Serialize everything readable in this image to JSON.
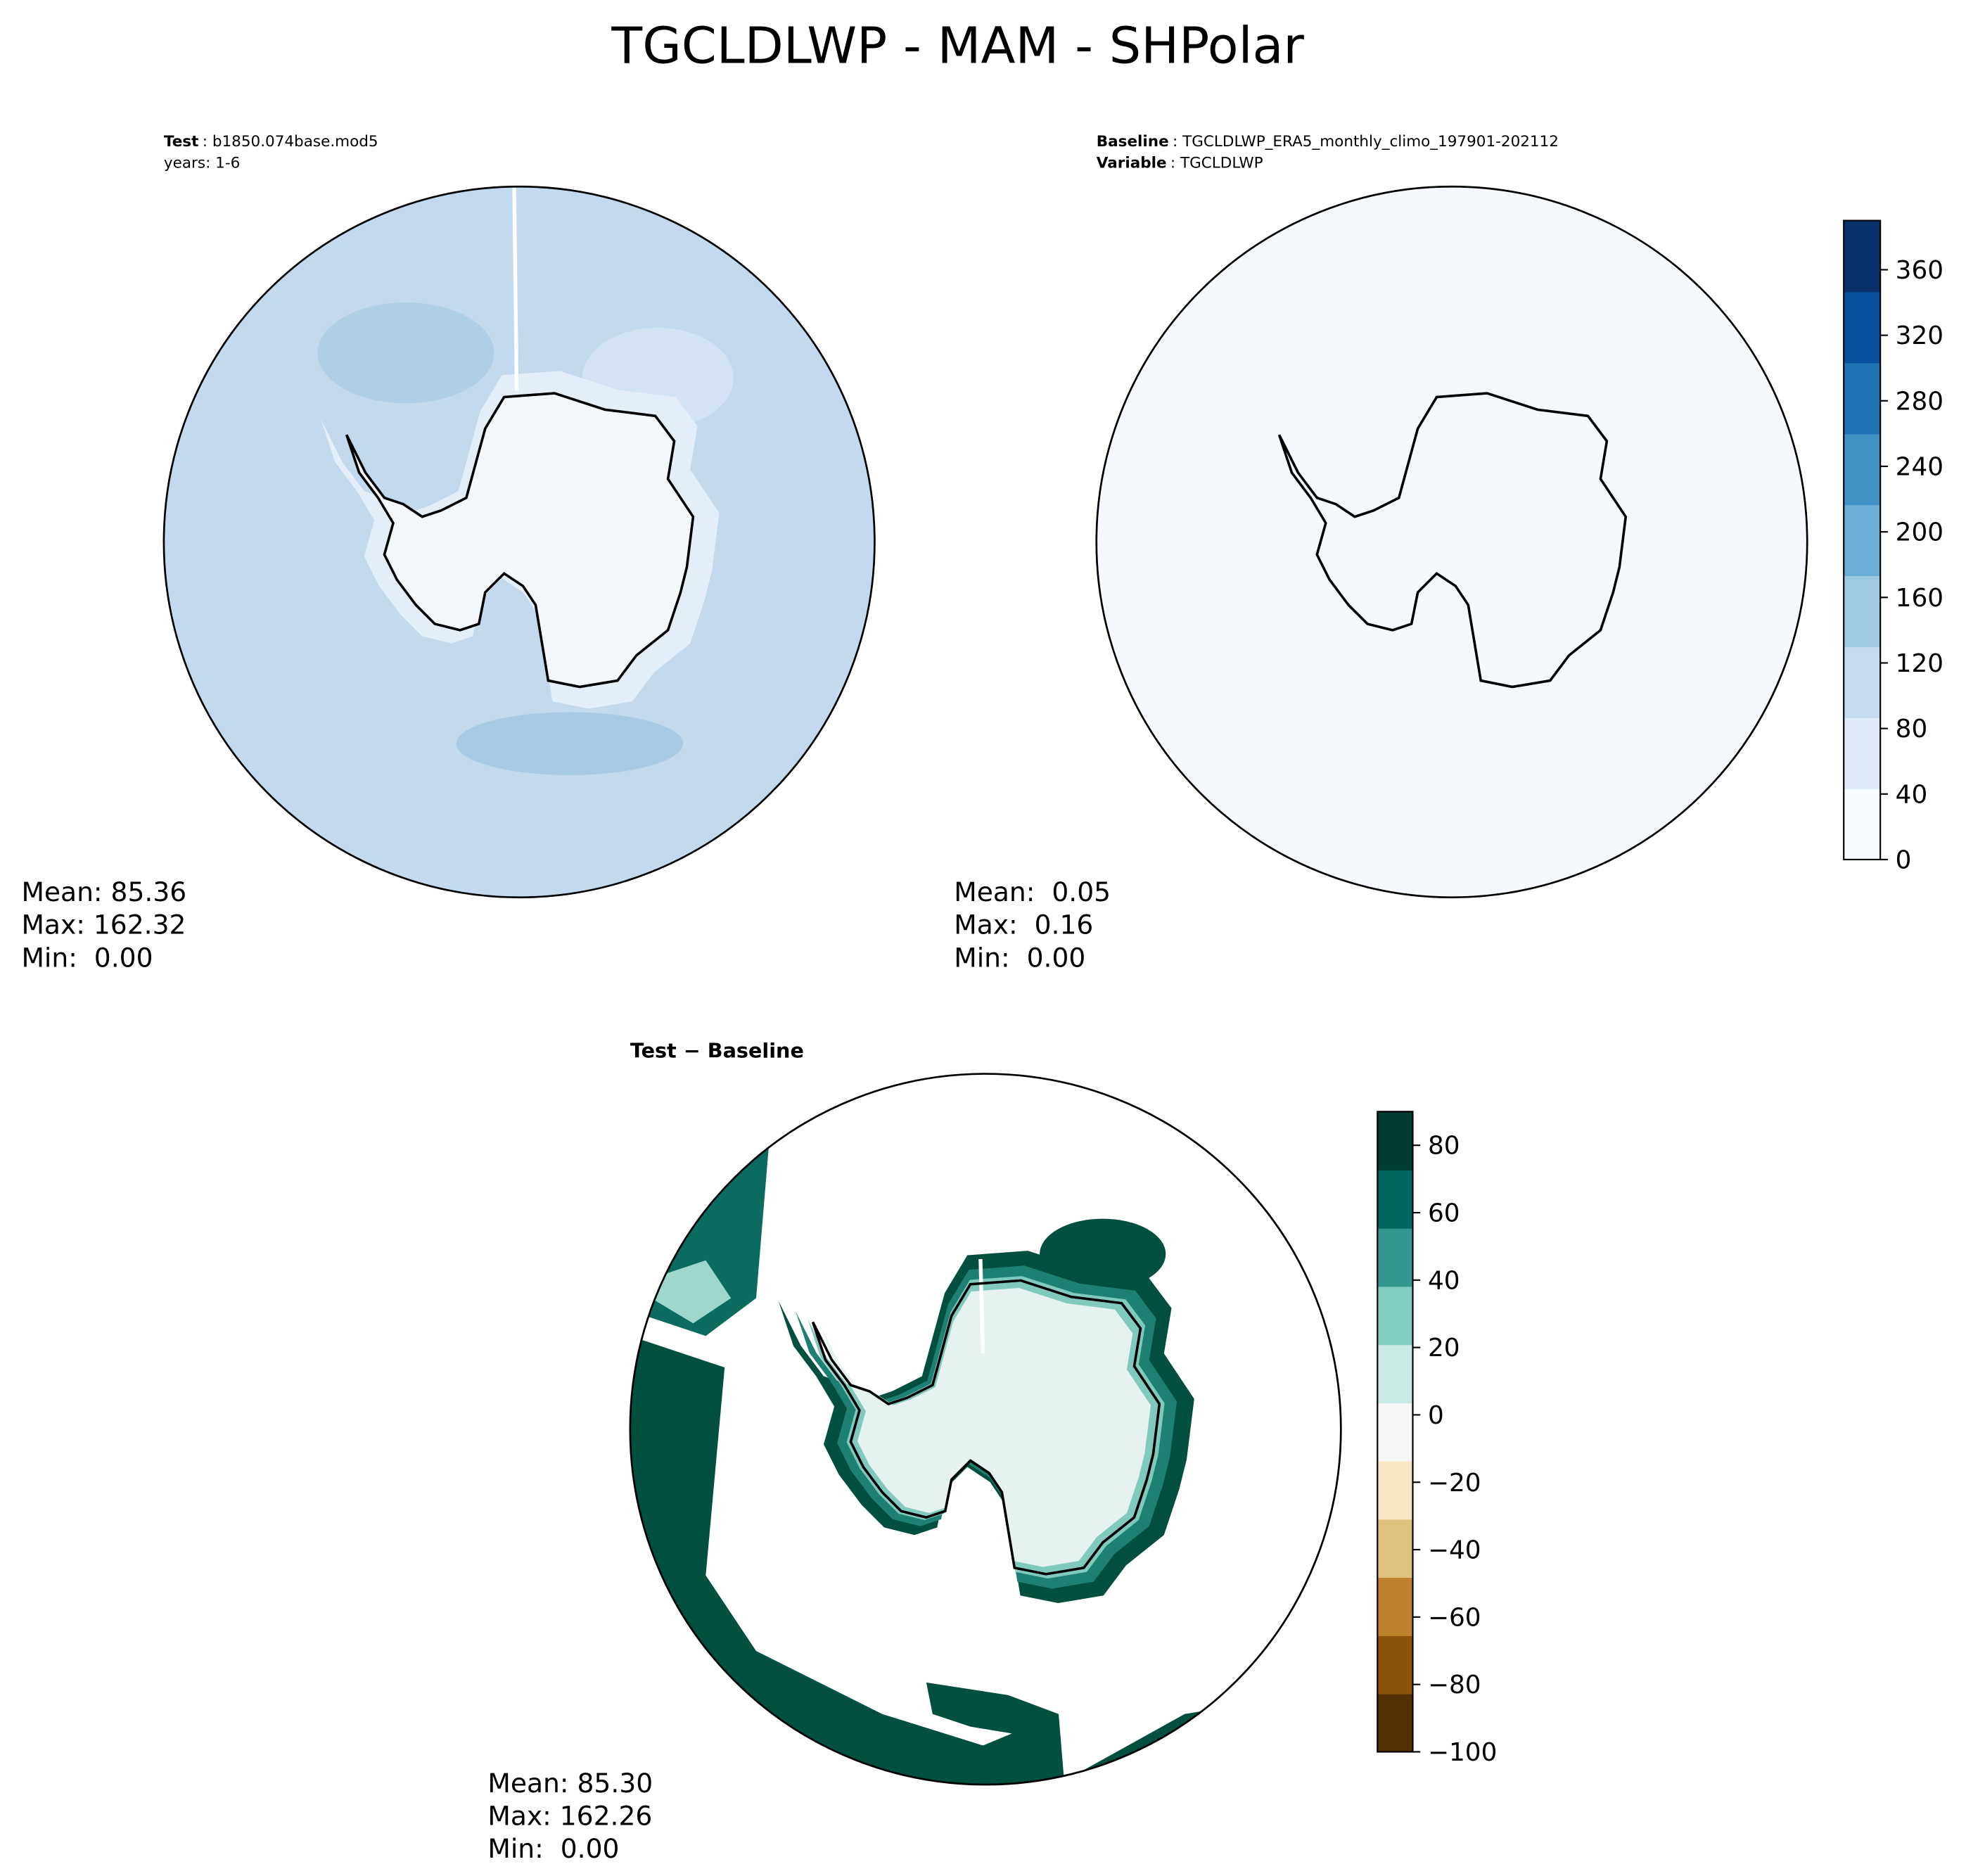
{
  "chart_data": {
    "type": "polar-contour",
    "title": "TGCLDLWP - MAM - SHPolar",
    "panels": [
      {
        "header": [
          {
            "key": "Test",
            "text": ": b1850.074base.mod5"
          },
          {
            "text": "years: 1-6"
          }
        ],
        "stats": [
          "Mean: 85.36",
          "Max: 162.32",
          "Min:  0.00"
        ]
      },
      {
        "header": [
          {
            "key": "Baseline",
            "text": ": TGCLDLWP_ERA5_monthly_climo_197901-202112"
          },
          {
            "key": "Variable",
            "text": ": TGCLDLWP"
          }
        ],
        "stats": [
          "Mean:  0.05",
          "Max:  0.16",
          "Min:  0.00"
        ]
      },
      {
        "header": [
          {
            "key": "Test − Baseline"
          }
        ],
        "stats": [
          "Mean: 85.30",
          "Max: 162.26",
          "Min:  0.00"
        ]
      }
    ],
    "colorbars": [
      {
        "ylim": [
          0,
          390
        ],
        "yticks": [
          0,
          40,
          80,
          120,
          160,
          200,
          240,
          280,
          320,
          360
        ],
        "colors": [
          "#f7fbff",
          "#deebf7",
          "#c6dbef",
          "#9ecae1",
          "#6baed6",
          "#4292c6",
          "#2171b5",
          "#08519c",
          "#08306b"
        ]
      },
      {
        "ylim": [
          -100,
          90
        ],
        "yticks": [
          {
            "value": -100,
            "label": "−100"
          },
          {
            "value": -80,
            "label": "−80"
          },
          {
            "value": -60,
            "label": "−60"
          },
          {
            "value": -40,
            "label": "−40"
          },
          {
            "value": -20,
            "label": "−20"
          },
          0,
          20,
          40,
          60,
          80
        ],
        "colors": [
          "#543005",
          "#8c510a",
          "#bf812d",
          "#dfc27d",
          "#f6e8c3",
          "#f5f5f5",
          "#c7eae5",
          "#80cdc1",
          "#35978f",
          "#01665e",
          "#003c30"
        ]
      }
    ]
  }
}
